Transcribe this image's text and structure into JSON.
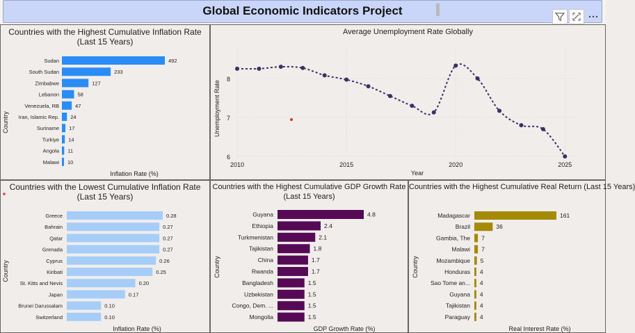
{
  "header": {
    "title": "Global Economic Indicators Project"
  },
  "toolbar": {
    "icons": [
      "filter-icon",
      "expand-icon",
      "more-options-icon"
    ]
  },
  "colors": {
    "high_inflation": "#2a8cf5",
    "low_inflation": "#a6cdf8",
    "gdp": "#560a55",
    "real_return": "#a68a05",
    "line": "#3b2f66"
  },
  "chart_data": [
    {
      "type": "bar",
      "title": "Countries with the Highest Cumulative Inflation Rate (Last 15 Years)",
      "ylabel": "Country",
      "xlabel": "Inflation Rate (%)",
      "categories": [
        "Sudan",
        "South Sudan",
        "Zimbabwe",
        "Lebanon",
        "Venezuela, RB",
        "Iran, Islamic Rep.",
        "Suriname",
        "Turkiye",
        "Angola",
        "Malawi"
      ],
      "values": [
        492,
        233,
        127,
        58,
        47,
        24,
        17,
        14,
        11,
        10
      ],
      "labels": [
        "492",
        "233",
        "127",
        "58",
        "47",
        "24",
        "17",
        "14",
        "11",
        "10"
      ]
    },
    {
      "type": "line",
      "title": "Average Unemployment Rate Globally",
      "xlabel": "Year",
      "ylabel": "Unemployment Rate",
      "x": [
        2010,
        2011,
        2012,
        2013,
        2014,
        2015,
        2016,
        2017,
        2018,
        2019,
        2020,
        2021,
        2022,
        2023,
        2024,
        2025
      ],
      "y": [
        8.25,
        8.25,
        8.3,
        8.27,
        8.08,
        7.97,
        7.8,
        7.55,
        7.3,
        7.13,
        8.33,
        8.0,
        7.17,
        6.8,
        6.7,
        6.0
      ],
      "xticks": [
        "2010",
        "2015",
        "2020",
        "2025"
      ],
      "yticks": [
        "8",
        "7",
        "6"
      ],
      "xlim": [
        2010,
        2025.5
      ],
      "ylim": [
        6,
        8.8
      ]
    },
    {
      "type": "bar",
      "title": "Countries with the Lowest Cumulative Inflation Rate (Last 15 Years)",
      "ylabel": "Country",
      "xlabel": "Inflation Rate (%)",
      "categories": [
        "Greece",
        "Bahrain",
        "Qatar",
        "Grenada",
        "Cyprus",
        "Kiribati",
        "St. Kitts and Nevis",
        "Japan",
        "Brunei Darussalam",
        "Switzerland"
      ],
      "values": [
        0.28,
        0.27,
        0.27,
        0.27,
        0.26,
        0.25,
        0.2,
        0.17,
        0.1,
        0.1
      ],
      "labels": [
        "0.28",
        "0.27",
        "0.27",
        "0.27",
        "0.26",
        "0.25",
        "0.20",
        "0.17",
        "0.10",
        "0.10"
      ]
    },
    {
      "type": "bar",
      "title": "Countries with the Highest Cumulative GDP Growth Rate (Last 15 Years)",
      "ylabel": "Country",
      "xlabel": "GDP Growth Rate (%)",
      "categories": [
        "Guyana",
        "Ethiopia",
        "Turkmenistan",
        "Tajikistan",
        "China",
        "Rwanda",
        "Bangladesh",
        "Uzbekistan",
        "Congo, Dem. ...",
        "Mongolia"
      ],
      "values": [
        4.8,
        2.4,
        2.1,
        1.8,
        1.7,
        1.7,
        1.5,
        1.5,
        1.5,
        1.5
      ],
      "labels": [
        "4.8",
        "2.4",
        "2.1",
        "1.8",
        "1.7",
        "1.7",
        "1.5",
        "1.5",
        "1.5",
        "1.5"
      ]
    },
    {
      "type": "bar",
      "title": "Countries with the Highest Cumulative Real Return (Last 15 Years)",
      "ylabel": "Country",
      "xlabel": "Real Interest Rate (%)",
      "categories": [
        "Madagascar",
        "Brazil",
        "Gambia, The",
        "Malawi",
        "Mozambique",
        "Honduras",
        "Sao Tome an...",
        "Guyana",
        "Tajikistan",
        "Paraguay"
      ],
      "values": [
        161,
        36,
        7,
        7,
        5,
        4,
        4,
        4,
        4,
        4
      ],
      "labels": [
        "161",
        "36",
        "7",
        "7",
        "5",
        "4",
        "4",
        "4",
        "4",
        "4"
      ]
    }
  ]
}
